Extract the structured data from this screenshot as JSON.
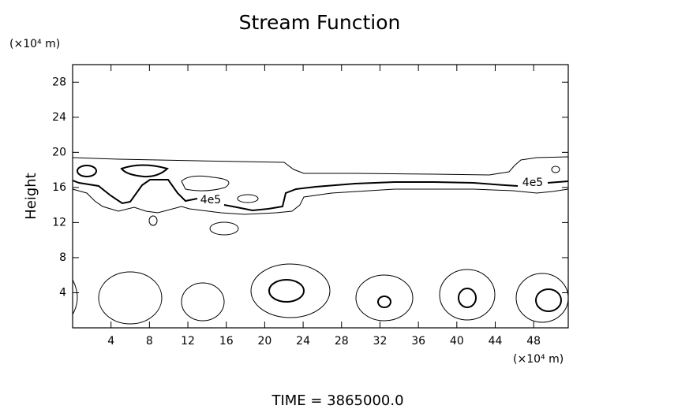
{
  "chart_data": {
    "type": "contour",
    "title": "Stream Function",
    "y_unit": "(×10⁴ m)",
    "x_unit": "(×10⁴ m)",
    "y_label": "Height",
    "footer": "TIME = 3865000.0",
    "contour_labels": [
      "4e5",
      "4e5"
    ],
    "xlim": [
      0,
      51.6
    ],
    "ylim": [
      0,
      30
    ],
    "xticks": [
      4,
      8,
      12,
      16,
      20,
      24,
      28,
      32,
      36,
      40,
      44,
      48
    ],
    "yticks": [
      4,
      8,
      12,
      16,
      20,
      24,
      28
    ]
  }
}
